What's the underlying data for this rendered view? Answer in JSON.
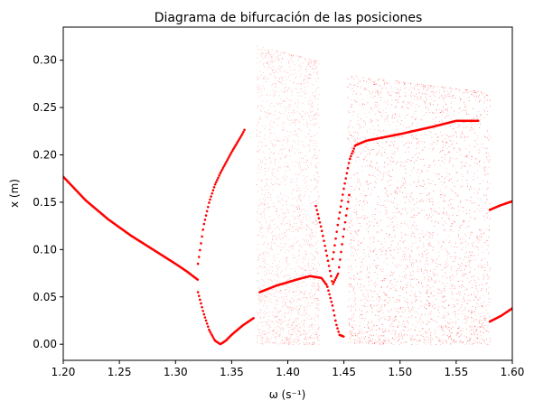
{
  "chart_data": {
    "type": "scatter",
    "title": "Diagrama de bifurcación de las posiciones",
    "xlabel": "ω (s⁻¹)",
    "ylabel": "x (m)",
    "xlim": [
      1.2,
      1.6
    ],
    "ylim": [
      -0.017,
      0.335
    ],
    "xticks": [
      1.2,
      1.25,
      1.3,
      1.35,
      1.4,
      1.45,
      1.5,
      1.55,
      1.6
    ],
    "xtick_labels": [
      "1.20",
      "1.25",
      "1.30",
      "1.35",
      "1.40",
      "1.45",
      "1.50",
      "1.55",
      "1.60"
    ],
    "yticks": [
      0.0,
      0.05,
      0.1,
      0.15,
      0.2,
      0.25,
      0.3
    ],
    "ytick_labels": [
      "0.00",
      "0.05",
      "0.10",
      "0.15",
      "0.20",
      "0.25",
      "0.30"
    ],
    "grid": false,
    "legend": "none",
    "marker_color": "#ff0000",
    "series": [
      {
        "role": "period-1 branch",
        "x": [
          1.2,
          1.22,
          1.24,
          1.26,
          1.28,
          1.3,
          1.31,
          1.32
        ],
        "y": [
          0.177,
          0.152,
          0.132,
          0.115,
          0.1,
          0.085,
          0.077,
          0.068
        ]
      },
      {
        "role": "period-2 upper branch",
        "x": [
          1.32,
          1.325,
          1.33,
          1.335,
          1.34,
          1.345,
          1.35,
          1.355,
          1.36,
          1.362
        ],
        "y": [
          0.085,
          0.125,
          0.15,
          0.168,
          0.181,
          0.192,
          0.203,
          0.213,
          0.223,
          0.228
        ]
      },
      {
        "role": "period-2 lower branch",
        "x": [
          1.32,
          1.325,
          1.33,
          1.335,
          1.34,
          1.345,
          1.35,
          1.355,
          1.36,
          1.365,
          1.37
        ],
        "y": [
          0.055,
          0.033,
          0.015,
          0.004,
          0.0,
          0.004,
          0.01,
          0.015,
          0.02,
          0.024,
          0.028
        ]
      },
      {
        "role": "chaotic band",
        "x": [
          1.372,
          1.428
        ],
        "y": [
          0.0,
          0.316
        ]
      },
      {
        "role": "periodic window lower branch",
        "x": [
          1.375,
          1.39,
          1.41,
          1.42,
          1.43,
          1.435,
          1.44,
          1.443,
          1.446,
          1.45
        ],
        "y": [
          0.055,
          0.062,
          0.069,
          0.072,
          0.07,
          0.062,
          0.04,
          0.022,
          0.01,
          0.008
        ]
      },
      {
        "role": "periodic window middle branch",
        "x": [
          1.425,
          1.43,
          1.435,
          1.44,
          1.445,
          1.45,
          1.455
        ],
        "y": [
          0.146,
          0.122,
          0.093,
          0.063,
          0.075,
          0.12,
          0.16
        ]
      },
      {
        "role": "periodic window upper branch",
        "x": [
          1.44,
          1.445,
          1.45,
          1.455,
          1.46,
          1.47,
          1.5,
          1.53,
          1.55,
          1.57
        ],
        "y": [
          0.09,
          0.13,
          0.165,
          0.195,
          0.21,
          0.215,
          0.222,
          0.23,
          0.236,
          0.236
        ]
      },
      {
        "role": "chaotic band",
        "x": [
          1.453,
          1.58
        ],
        "y": [
          0.0,
          0.285
        ]
      },
      {
        "role": "period-1 right upper branch",
        "x": [
          1.58,
          1.59,
          1.6
        ],
        "y": [
          0.142,
          0.147,
          0.151
        ]
      },
      {
        "role": "period-1 right lower branch",
        "x": [
          1.58,
          1.59,
          1.6
        ],
        "y": [
          0.024,
          0.03,
          0.038
        ]
      }
    ]
  }
}
